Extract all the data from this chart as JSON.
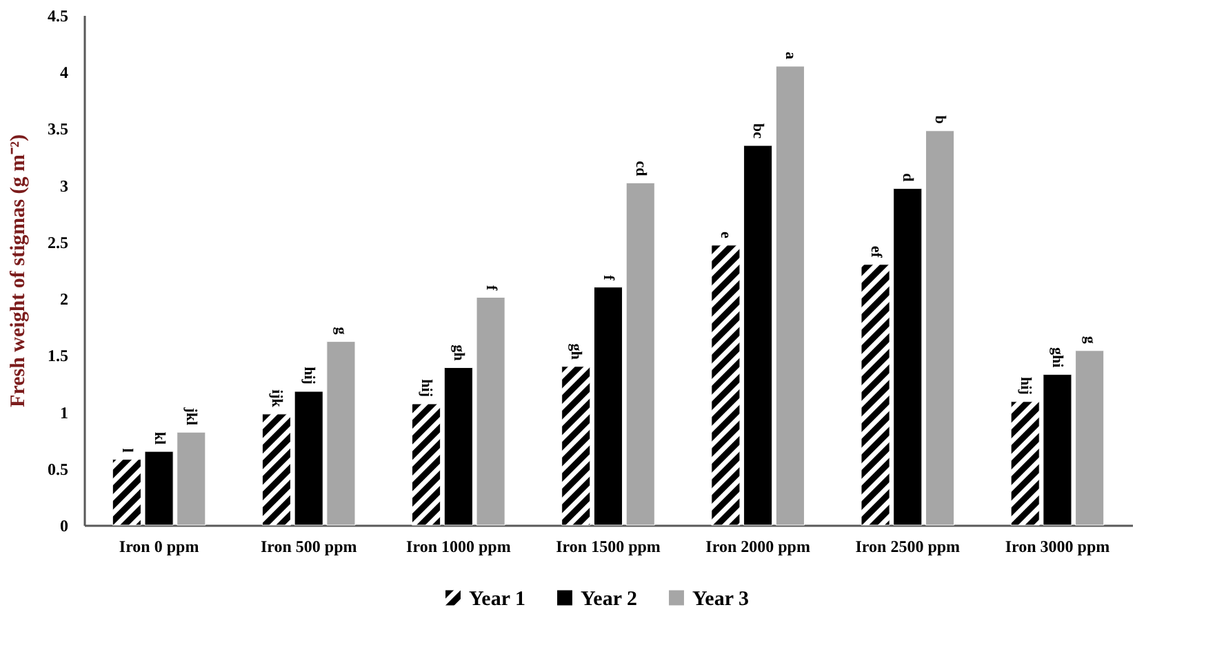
{
  "chart_data": {
    "type": "bar",
    "ylabel": "Fresh weight of stigmas (g m⁻²)",
    "categories": [
      "Iron 0 ppm",
      "Iron 500 ppm",
      "Iron 1000 ppm",
      "Iron 1500 ppm",
      "Iron 2000 ppm",
      "Iron 2500 ppm",
      "Iron 3000 ppm"
    ],
    "series": [
      {
        "name": "Year 1",
        "color": "#ffffff",
        "values": [
          0.58,
          0.98,
          1.07,
          1.4,
          2.47,
          2.3,
          1.09
        ],
        "value_labels": [
          "l",
          "ijk",
          "hij",
          "gh",
          "e",
          "ef",
          "hij"
        ]
      },
      {
        "name": "Year 2",
        "color": "#000000",
        "values": [
          0.65,
          1.18,
          1.39,
          2.1,
          3.35,
          2.97,
          1.33
        ],
        "value_labels": [
          "kl",
          "hij",
          "gh",
          "f",
          "bc",
          "d",
          "ghi"
        ]
      },
      {
        "name": "Year 3",
        "color": "#a6a6a6",
        "values": [
          0.82,
          1.62,
          2.01,
          3.02,
          4.05,
          3.48,
          1.54
        ],
        "value_labels": [
          "jkl",
          "g",
          "f",
          "cd",
          "a",
          "b",
          "g"
        ]
      }
    ],
    "ylim": [
      0,
      4.5
    ],
    "yticks": [
      0,
      0.5,
      1,
      1.5,
      2,
      2.5,
      3,
      3.5,
      4,
      4.5
    ],
    "grid": false,
    "legend": "bottom"
  }
}
